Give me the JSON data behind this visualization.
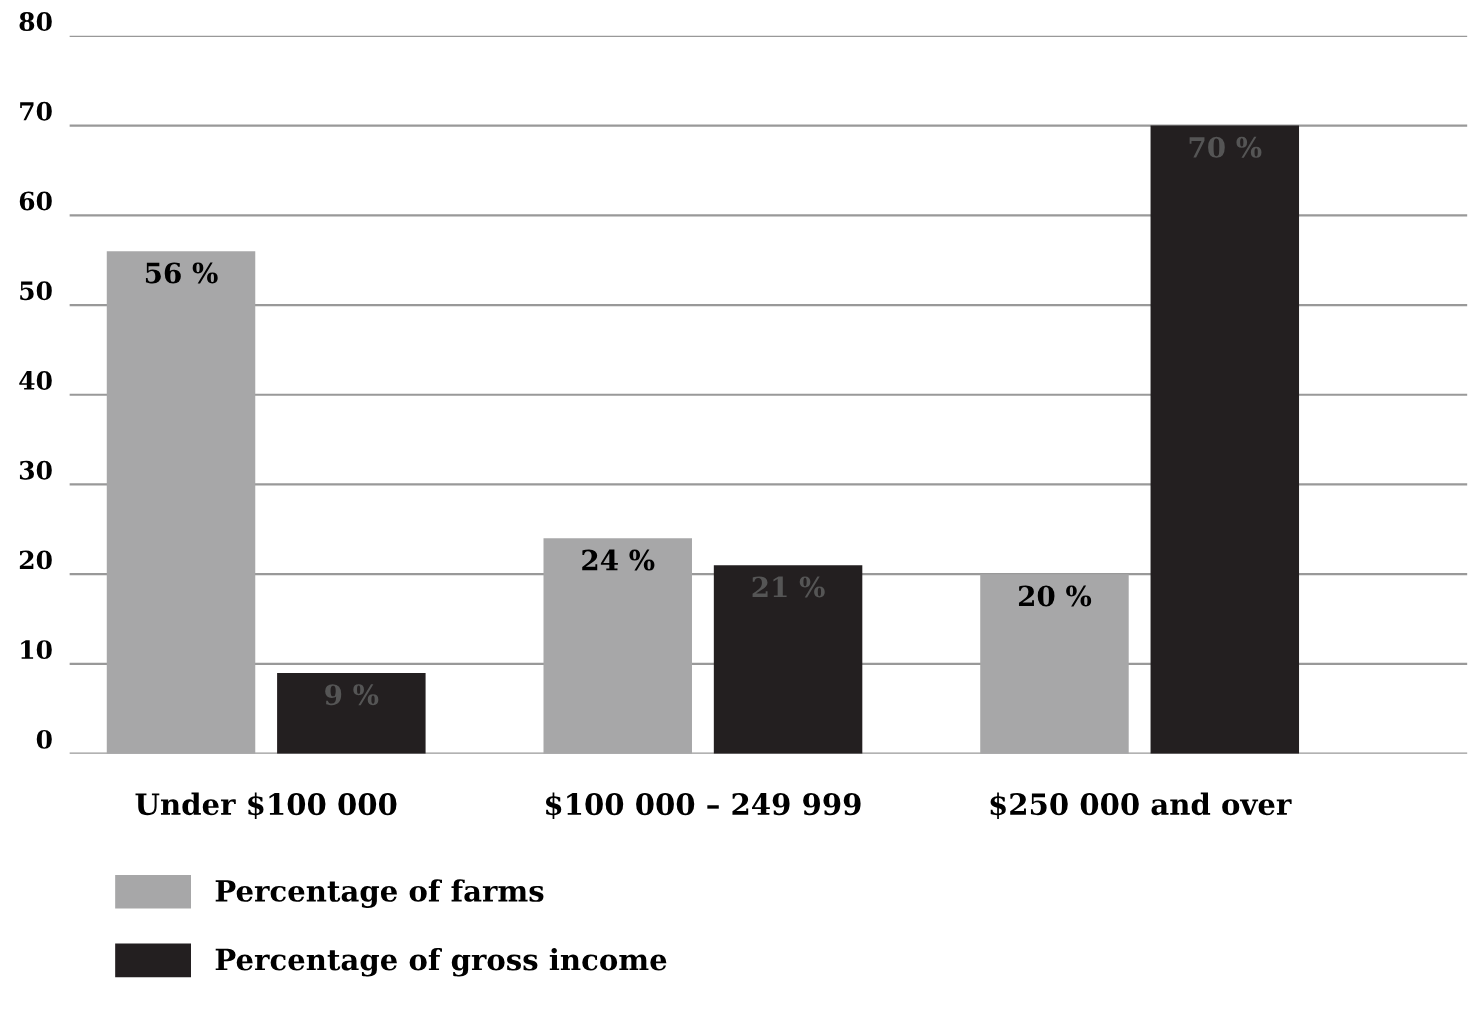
{
  "chart_data": {
    "type": "bar",
    "categories": [
      "Under $100 000",
      "$100 000 – 249 999",
      "$250 000 and over"
    ],
    "series": [
      {
        "name": "Percentage of farms",
        "color": "#a7a7a8",
        "values": [
          56,
          24,
          20
        ],
        "value_labels": [
          "56 %",
          "24 %",
          "20 %"
        ]
      },
      {
        "name": "Percentage of gross income",
        "color": "#231f20",
        "values": [
          9,
          21,
          70
        ],
        "value_labels": [
          "9 %",
          "21 %",
          "70 %"
        ]
      }
    ],
    "ylim": [
      0,
      80
    ],
    "yticks": [
      0,
      10,
      20,
      30,
      40,
      50,
      60,
      70,
      80
    ],
    "grid": "y",
    "legend": "bottom"
  }
}
